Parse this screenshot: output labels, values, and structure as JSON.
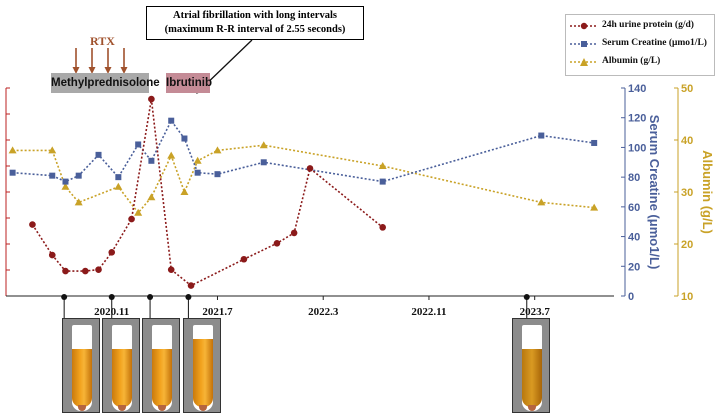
{
  "callout": {
    "line1": "Atrial fibrillation with long intervals",
    "line2": "(maximum R-R interval of 2.55 seconds)"
  },
  "treatments": {
    "rtx": "RTX",
    "methyl": "Methylprednisolone",
    "ibrutinib": "Ibrutinib"
  },
  "legend": [
    {
      "label": "24h urine protein (g/d)",
      "color": "#8b1a1a"
    },
    {
      "label": "Serum Creatine (μmo1/L)",
      "color": "#4a5f9a"
    },
    {
      "label": "Albumin (g/L)",
      "color": "#c9a227"
    }
  ],
  "colors": {
    "protein": "#8b1a1a",
    "creatine": "#4a5f9a",
    "albumin": "#c9a227",
    "arrow": "#a0522d"
  },
  "chart_data": {
    "type": "line",
    "x_ticks": [
      "2020.11",
      "2021.7",
      "2022.3",
      "2022.11",
      "2023.7"
    ],
    "x_tick_months": [
      0,
      8,
      16,
      24,
      32
    ],
    "xlim_months": [
      -8,
      38
    ],
    "series": [
      {
        "name": "24h urine protein (g/d)",
        "axis": "left",
        "months": [
          -6,
          -4.5,
          -3.5,
          -2,
          -1,
          0,
          1.5,
          3,
          4.5,
          6,
          10,
          12.5,
          13.8,
          15,
          20.5,
          31.5
        ],
        "values": [
          10.3,
          5.9,
          3.6,
          3.6,
          3.8,
          6.3,
          11.1,
          28.4,
          3.8,
          1.5,
          5.3,
          7.6,
          9.1,
          18.4,
          9.9,
          null
        ]
      },
      {
        "name": "Serum Creatine (μmo1/L)",
        "axis": "right1",
        "ylim": [
          0,
          140
        ],
        "yticks": [
          0,
          20,
          40,
          60,
          80,
          100,
          120,
          140
        ],
        "ylabel": "Serum Creatine (μmo1/L)",
        "months": [
          -7.5,
          -4.5,
          -3.5,
          -2.5,
          -1,
          0.5,
          2,
          3,
          4.5,
          5.5,
          6.5,
          8,
          11.5,
          20.5,
          32.5,
          36.5
        ],
        "values": [
          83,
          81,
          77,
          81,
          95,
          80,
          102,
          91,
          118,
          106,
          83,
          82,
          90,
          77,
          108,
          103
        ]
      },
      {
        "name": "Albumin (g/L)",
        "axis": "right2",
        "ylim": [
          10,
          50
        ],
        "yticks": [
          10,
          20,
          30,
          40,
          50
        ],
        "ylabel": "Albumin (g/L)",
        "months": [
          -7.5,
          -4.5,
          -3.5,
          -2.5,
          0.5,
          2,
          3,
          4.5,
          5.5,
          6.5,
          8,
          11.5,
          20.5,
          32.5,
          36.5
        ],
        "values": [
          38,
          38,
          31,
          28,
          31,
          26,
          29,
          37,
          30,
          36,
          38,
          39,
          35,
          28,
          27
        ]
      }
    ],
    "protein_note": "left axis tick labels not legible in the image"
  }
}
